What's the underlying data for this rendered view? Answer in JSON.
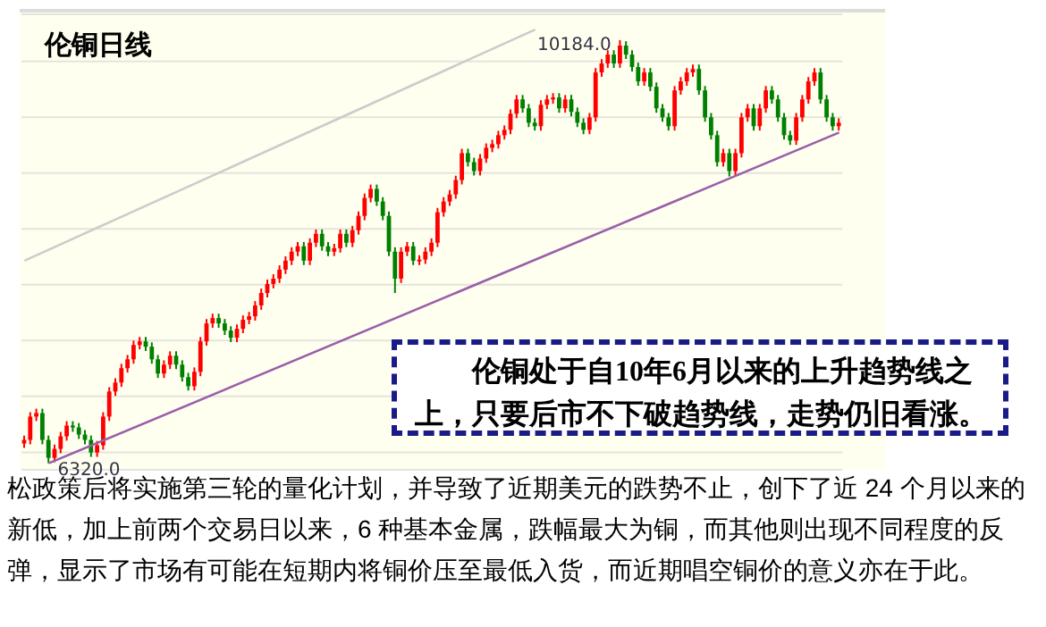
{
  "chart_data": {
    "type": "candlestick",
    "title": "伦铜日线",
    "categories": [
      null,
      null,
      null,
      null,
      null,
      null,
      null,
      null,
      null,
      null,
      null,
      null,
      null,
      null,
      null,
      null,
      null,
      null,
      null,
      null,
      null,
      null,
      null,
      null,
      null,
      null,
      null,
      null,
      null,
      null,
      null,
      null,
      null,
      null,
      null,
      null,
      null,
      null,
      null,
      null,
      null,
      null,
      null,
      null,
      null,
      null,
      null,
      null,
      null,
      null,
      null,
      null,
      null,
      null,
      null,
      null,
      null,
      null,
      null,
      null,
      null,
      null,
      null,
      null,
      null,
      null,
      null,
      null,
      null,
      null,
      null,
      null,
      null,
      null,
      null,
      null,
      null,
      null,
      null,
      null,
      null,
      null,
      null,
      null,
      null,
      null,
      null,
      null,
      null,
      null,
      null,
      null,
      null,
      null,
      null,
      null,
      null,
      null,
      null,
      null,
      null,
      null,
      null,
      null,
      null,
      null,
      null,
      null,
      null,
      null,
      null,
      null,
      null,
      null,
      null,
      null,
      null,
      null,
      null,
      null,
      null,
      null,
      null,
      null,
      null,
      null,
      null,
      null,
      null,
      null,
      null,
      null,
      null,
      null,
      null
    ],
    "ohlc": [
      [
        6500,
        6573,
        6460,
        6533
      ],
      [
        6533,
        6786,
        6493,
        6746
      ],
      [
        6746,
        6818,
        6706,
        6778
      ],
      [
        6778,
        6818,
        6493,
        6533
      ],
      [
        6533,
        6573,
        6320,
        6369
      ],
      [
        6369,
        6491,
        6329,
        6451
      ],
      [
        6451,
        6606,
        6411,
        6566
      ],
      [
        6566,
        6704,
        6526,
        6664
      ],
      [
        6664,
        6704,
        6607,
        6647
      ],
      [
        6647,
        6687,
        6542,
        6582
      ],
      [
        6582,
        6622,
        6493,
        6533
      ],
      [
        6533,
        6573,
        6378,
        6418
      ],
      [
        6418,
        6524,
        6378,
        6484
      ],
      [
        6484,
        6786,
        6444,
        6746
      ],
      [
        6746,
        7015,
        6706,
        6975
      ],
      [
        6975,
        7097,
        6935,
        7057
      ],
      [
        7057,
        7228,
        7017,
        7188
      ],
      [
        7188,
        7309,
        7148,
        7269
      ],
      [
        7269,
        7440,
        7229,
        7400
      ],
      [
        7400,
        7473,
        7360,
        7433
      ],
      [
        7433,
        7473,
        7344,
        7384
      ],
      [
        7384,
        7424,
        7229,
        7269
      ],
      [
        7269,
        7309,
        7099,
        7139
      ],
      [
        7139,
        7260,
        7099,
        7220
      ],
      [
        7220,
        7342,
        7180,
        7302
      ],
      [
        7302,
        7342,
        7180,
        7220
      ],
      [
        7220,
        7260,
        7066,
        7106
      ],
      [
        7106,
        7146,
        6984,
        7024
      ],
      [
        7024,
        7195,
        6984,
        7155
      ],
      [
        7155,
        7473,
        7115,
        7433
      ],
      [
        7433,
        7637,
        7393,
        7597
      ],
      [
        7597,
        7686,
        7557,
        7646
      ],
      [
        7646,
        7686,
        7557,
        7597
      ],
      [
        7597,
        7637,
        7491,
        7531
      ],
      [
        7531,
        7571,
        7426,
        7466
      ],
      [
        7466,
        7588,
        7426,
        7548
      ],
      [
        7548,
        7670,
        7508,
        7630
      ],
      [
        7630,
        7702,
        7590,
        7662
      ],
      [
        7662,
        7801,
        7622,
        7761
      ],
      [
        7761,
        7915,
        7721,
        7875
      ],
      [
        7875,
        7997,
        7835,
        7957
      ],
      [
        7957,
        8046,
        7917,
        8006
      ],
      [
        8006,
        8128,
        7966,
        8088
      ],
      [
        8088,
        8210,
        8048,
        8170
      ],
      [
        8170,
        8292,
        8130,
        8252
      ],
      [
        8252,
        8341,
        8212,
        8301
      ],
      [
        8301,
        8341,
        8130,
        8170
      ],
      [
        8170,
        8374,
        8130,
        8334
      ],
      [
        8334,
        8455,
        8294,
        8415
      ],
      [
        8415,
        8455,
        8261,
        8301
      ],
      [
        8301,
        8341,
        8212,
        8252
      ],
      [
        8252,
        8324,
        8212,
        8284
      ],
      [
        8284,
        8455,
        8244,
        8415
      ],
      [
        8415,
        8455,
        8294,
        8334
      ],
      [
        8334,
        8488,
        8294,
        8448
      ],
      [
        8448,
        8619,
        8408,
        8579
      ],
      [
        8579,
        8783,
        8539,
        8743
      ],
      [
        8743,
        8865,
        8703,
        8825
      ],
      [
        8825,
        8865,
        8670,
        8710
      ],
      [
        8710,
        8750,
        8539,
        8579
      ],
      [
        8579,
        8619,
        8212,
        8252
      ],
      [
        8252,
        8292,
        7875,
        8006
      ],
      [
        8006,
        8292,
        7966,
        8252
      ],
      [
        8252,
        8341,
        8212,
        8301
      ],
      [
        8301,
        8341,
        8130,
        8170
      ],
      [
        8170,
        8220,
        8130,
        8180
      ],
      [
        8180,
        8292,
        8140,
        8252
      ],
      [
        8252,
        8374,
        8212,
        8334
      ],
      [
        8334,
        8652,
        8294,
        8612
      ],
      [
        8612,
        8750,
        8572,
        8710
      ],
      [
        8710,
        8815,
        8670,
        8775
      ],
      [
        8775,
        8946,
        8735,
        8906
      ],
      [
        8906,
        9192,
        8866,
        9152
      ],
      [
        9152,
        9192,
        9030,
        9070
      ],
      [
        9070,
        9110,
        8948,
        8988
      ],
      [
        8988,
        9143,
        8948,
        9103
      ],
      [
        9103,
        9241,
        9063,
        9201
      ],
      [
        9201,
        9274,
        9161,
        9234
      ],
      [
        9234,
        9356,
        9194,
        9316
      ],
      [
        9316,
        9405,
        9276,
        9365
      ],
      [
        9365,
        9552,
        9325,
        9512
      ],
      [
        9512,
        9683,
        9472,
        9643
      ],
      [
        9643,
        9683,
        9521,
        9561
      ],
      [
        9561,
        9601,
        9390,
        9430
      ],
      [
        9430,
        9470,
        9358,
        9398
      ],
      [
        9398,
        9634,
        9358,
        9594
      ],
      [
        9594,
        9683,
        9554,
        9643
      ],
      [
        9643,
        9700,
        9603,
        9660
      ],
      [
        9660,
        9700,
        9521,
        9561
      ],
      [
        9561,
        9683,
        9521,
        9643
      ],
      [
        9643,
        9683,
        9489,
        9529
      ],
      [
        9529,
        9569,
        9390,
        9430
      ],
      [
        9430,
        9470,
        9325,
        9365
      ],
      [
        9365,
        9519,
        9325,
        9479
      ],
      [
        9479,
        9929,
        9439,
        9889
      ],
      [
        9889,
        10011,
        9849,
        9971
      ],
      [
        9971,
        10092,
        9931,
        10052
      ],
      [
        10052,
        10092,
        9931,
        9971
      ],
      [
        9971,
        10184,
        9931,
        10134
      ],
      [
        10134,
        10174,
        10012,
        10052
      ],
      [
        10052,
        10092,
        9898,
        9938
      ],
      [
        9938,
        9978,
        9767,
        9807
      ],
      [
        9807,
        9929,
        9767,
        9889
      ],
      [
        9889,
        9929,
        9718,
        9758
      ],
      [
        9758,
        9798,
        9521,
        9561
      ],
      [
        9561,
        9601,
        9439,
        9479
      ],
      [
        9479,
        9519,
        9358,
        9398
      ],
      [
        9398,
        9765,
        9358,
        9725
      ],
      [
        9725,
        9847,
        9685,
        9807
      ],
      [
        9807,
        9929,
        9767,
        9889
      ],
      [
        9889,
        9961,
        9849,
        9921
      ],
      [
        9921,
        9961,
        9685,
        9725
      ],
      [
        9725,
        9765,
        9439,
        9479
      ],
      [
        9479,
        9519,
        9276,
        9316
      ],
      [
        9316,
        9356,
        9030,
        9070
      ],
      [
        9070,
        9192,
        9030,
        9152
      ],
      [
        9152,
        9192,
        8939,
        8988
      ],
      [
        8988,
        9192,
        8948,
        9152
      ],
      [
        9152,
        9519,
        9112,
        9479
      ],
      [
        9479,
        9601,
        9439,
        9561
      ],
      [
        9561,
        9601,
        9358,
        9398
      ],
      [
        9398,
        9601,
        9358,
        9561
      ],
      [
        9561,
        9765,
        9521,
        9725
      ],
      [
        9725,
        9765,
        9603,
        9643
      ],
      [
        9643,
        9683,
        9439,
        9479
      ],
      [
        9479,
        9519,
        9276,
        9316
      ],
      [
        9316,
        9356,
        9227,
        9267
      ],
      [
        9267,
        9519,
        9227,
        9479
      ],
      [
        9479,
        9683,
        9439,
        9643
      ],
      [
        9643,
        9847,
        9603,
        9807
      ],
      [
        9807,
        9929,
        9767,
        9889
      ],
      [
        9889,
        9929,
        9603,
        9643
      ],
      [
        9643,
        9683,
        9439,
        9479
      ],
      [
        9479,
        9519,
        9358,
        9398
      ],
      [
        9398,
        9470,
        9358,
        9430
      ]
    ],
    "colors": [
      "#ff0000",
      "#ff0000",
      "#ff0000",
      "#008000",
      "#008000",
      "#ff0000",
      "#ff0000",
      "#ff0000",
      "#008000",
      "#008000",
      "#008000",
      "#008000",
      "#ff0000",
      "#ff0000",
      "#ff0000",
      "#ff0000",
      "#ff0000",
      "#ff0000",
      "#ff0000",
      "#ff0000",
      "#008000",
      "#008000",
      "#008000",
      "#ff0000",
      "#ff0000",
      "#008000",
      "#008000",
      "#008000",
      "#ff0000",
      "#ff0000",
      "#ff0000",
      "#ff0000",
      "#008000",
      "#008000",
      "#008000",
      "#ff0000",
      "#ff0000",
      "#ff0000",
      "#ff0000",
      "#ff0000",
      "#ff0000",
      "#ff0000",
      "#ff0000",
      "#ff0000",
      "#ff0000",
      "#ff0000",
      "#008000",
      "#ff0000",
      "#ff0000",
      "#008000",
      "#008000",
      "#ff0000",
      "#ff0000",
      "#008000",
      "#ff0000",
      "#ff0000",
      "#ff0000",
      "#ff0000",
      "#008000",
      "#008000",
      "#008000",
      "#008000",
      "#ff0000",
      "#ff0000",
      "#008000",
      "#ff0000",
      "#ff0000",
      "#ff0000",
      "#ff0000",
      "#ff0000",
      "#ff0000",
      "#ff0000",
      "#ff0000",
      "#008000",
      "#008000",
      "#ff0000",
      "#ff0000",
      "#ff0000",
      "#ff0000",
      "#ff0000",
      "#ff0000",
      "#ff0000",
      "#008000",
      "#008000",
      "#008000",
      "#ff0000",
      "#ff0000",
      "#ff0000",
      "#008000",
      "#ff0000",
      "#008000",
      "#008000",
      "#008000",
      "#ff0000",
      "#ff0000",
      "#ff0000",
      "#ff0000",
      "#008000",
      "#ff0000",
      "#008000",
      "#008000",
      "#008000",
      "#ff0000",
      "#008000",
      "#008000",
      "#008000",
      "#008000",
      "#ff0000",
      "#ff0000",
      "#ff0000",
      "#ff0000",
      "#008000",
      "#008000",
      "#008000",
      "#008000",
      "#ff0000",
      "#008000",
      "#ff0000",
      "#ff0000",
      "#ff0000",
      "#008000",
      "#ff0000",
      "#ff0000",
      "#008000",
      "#008000",
      "#008000",
      "#008000",
      "#ff0000",
      "#ff0000",
      "#ff0000",
      "#ff0000",
      "#008000",
      "#008000",
      "#008000",
      "#ff0000"
    ],
    "series": [
      {
        "type": "line",
        "color": "#9b5fa8",
        "values": [
          null,
          null,
          null,
          null,
          6320,
          null,
          null,
          null,
          null,
          null,
          null,
          null,
          null,
          null,
          null,
          null,
          null,
          null,
          null,
          null,
          null,
          null,
          null,
          null,
          null,
          null,
          null,
          null,
          null,
          null,
          null,
          null,
          null,
          null,
          null,
          null,
          null,
          null,
          null,
          null,
          null,
          null,
          null,
          null,
          null,
          null,
          null,
          null,
          null,
          null,
          null,
          null,
          null,
          null,
          null,
          null,
          null,
          null,
          null,
          null,
          null,
          null,
          null,
          null,
          null,
          null,
          null,
          null,
          null,
          null,
          null,
          null,
          null,
          null,
          null,
          null,
          null,
          null,
          null,
          null,
          null,
          null,
          null,
          null,
          null,
          null,
          null,
          null,
          null,
          null,
          null,
          null,
          null,
          null,
          null,
          null,
          null,
          null,
          null,
          null,
          null,
          null,
          null,
          null,
          null,
          null,
          null,
          null,
          null,
          null,
          null,
          null,
          null,
          null,
          null,
          null,
          null,
          null,
          null,
          null,
          null,
          null,
          null,
          null,
          null,
          null,
          null,
          null,
          null,
          null,
          null,
          null,
          null,
          null,
          9340
        ]
      },
      {
        "type": "line",
        "color": "#cccccc",
        "values": [
          8170,
          null,
          null,
          null,
          null,
          null,
          null,
          null,
          null,
          null,
          null,
          null,
          null,
          null,
          null,
          null,
          null,
          null,
          null,
          null,
          null,
          null,
          null,
          null,
          null,
          null,
          null,
          null,
          null,
          null,
          null,
          null,
          null,
          null,
          null,
          null,
          null,
          null,
          null,
          null,
          null,
          null,
          null,
          null,
          null,
          null,
          null,
          null,
          null,
          null,
          null,
          null,
          null,
          null,
          null,
          null,
          null,
          null,
          null,
          null,
          null,
          null,
          null,
          null,
          null,
          null,
          null,
          null,
          null,
          null,
          null,
          null,
          null,
          null,
          null,
          null,
          null,
          null,
          null,
          null,
          null,
          null,
          null,
          null,
          10280,
          null,
          null,
          null,
          null,
          null,
          null,
          null,
          null,
          null,
          null,
          null,
          null,
          null,
          null,
          null,
          null,
          null,
          null,
          null,
          null,
          null,
          null,
          null,
          null,
          null,
          null,
          null,
          null,
          null,
          null,
          null,
          null,
          null,
          null,
          null,
          null,
          null,
          null,
          null,
          null,
          null,
          null,
          null,
          null,
          null,
          null,
          null,
          null,
          null,
          null
        ]
      }
    ],
    "ylim": [
      6260,
      10420
    ],
    "yticks": [
      {
        "value": 6420,
        "label": null
      },
      {
        "value": 6930,
        "label": null
      },
      {
        "value": 7440,
        "label": null
      },
      {
        "value": 7950,
        "label": null
      },
      {
        "value": 8460,
        "label": null
      },
      {
        "value": 8970,
        "label": null
      },
      {
        "value": 9480,
        "label": null
      },
      {
        "value": 9990,
        "label": null
      }
    ],
    "grid": "y",
    "tick_labels": false,
    "annotations": [
      "伦铜处于自10年6月以来的上升趋势线之上，只要后市不下破趋势线，走势仍旧看涨。",
      "松政策后将实施第三轮的量化计划，并导致了近期美元的跌势不止，创下了近 24 个月以来的新低，加上前两个交易日以来，6 种基本金属，跌幅最大为铜，而其他则出现不同程度的反弹，显示了市场有可能在短期内将铜价压至最低入货，而近期唱空铜价的意义亦在于此。",
      "10184.0",
      "6320.0"
    ]
  }
}
